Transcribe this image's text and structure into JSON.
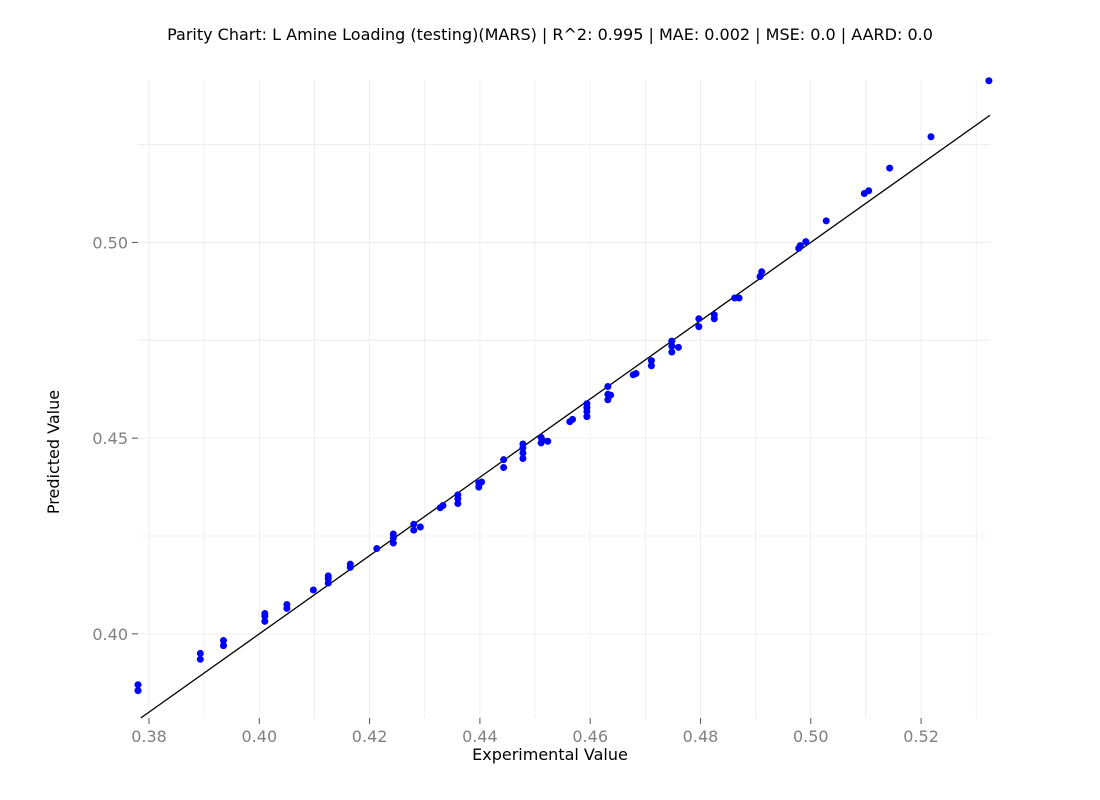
{
  "chart_data": {
    "type": "scatter",
    "title": "Parity Chart: L Amine Loading (testing)(MARS) | R^2: 0.995 | MAE: 0.002 | MSE: 0.0 | AARD: 0.0",
    "xlabel": "Experimental Value",
    "ylabel": "Predicted Value",
    "xlim": [
      0.378,
      0.5325
    ],
    "ylim": [
      0.3785,
      0.5415
    ],
    "xticks": [
      0.38,
      0.4,
      0.42,
      0.44,
      0.46,
      0.48,
      0.5,
      0.52
    ],
    "xtick_labels": [
      "0.38",
      "0.40",
      "0.42",
      "0.44",
      "0.46",
      "0.48",
      "0.50",
      "0.52"
    ],
    "yticks": [
      0.4,
      0.45,
      0.5
    ],
    "ytick_labels": [
      "0.40",
      "0.45",
      "0.50"
    ],
    "grid": true,
    "marker_color": "#0000ff",
    "reference_line": "y = x",
    "reference_line_color": "#000000",
    "series": [
      {
        "x": [
          0.378,
          0.378,
          0.3893,
          0.3893,
          0.3935,
          0.3935,
          0.401,
          0.401,
          0.401,
          0.405,
          0.405,
          0.4098,
          0.4125,
          0.4125,
          0.4125,
          0.4165,
          0.4165,
          0.4213,
          0.4243,
          0.4243,
          0.4243,
          0.428,
          0.428,
          0.4292,
          0.4328,
          0.4333,
          0.436,
          0.436,
          0.436,
          0.4398,
          0.4398,
          0.4403,
          0.4443,
          0.4443,
          0.4478,
          0.4478,
          0.4478,
          0.4478,
          0.4511,
          0.4511,
          0.4513,
          0.4523,
          0.4563,
          0.4568,
          0.4594,
          0.4594,
          0.4594,
          0.4594,
          0.4632,
          0.4632,
          0.4632,
          0.4637,
          0.4678,
          0.4683,
          0.4711,
          0.4711,
          0.4748,
          0.4748,
          0.4748,
          0.476,
          0.4797,
          0.4797,
          0.4825,
          0.4825,
          0.4862,
          0.487,
          0.4908,
          0.4911,
          0.4978,
          0.4981,
          0.4991,
          0.5028,
          0.5097,
          0.5105,
          0.5143,
          0.5218,
          0.5323
        ]
      },
      {
        "y": [
          0.3855,
          0.387,
          0.3935,
          0.395,
          0.397,
          0.3983,
          0.4032,
          0.4045,
          0.4052,
          0.4065,
          0.4075,
          0.4112,
          0.413,
          0.4141,
          0.4148,
          0.417,
          0.4178,
          0.4218,
          0.4232,
          0.4245,
          0.4255,
          0.4265,
          0.428,
          0.4273,
          0.4322,
          0.4328,
          0.4333,
          0.4345,
          0.4355,
          0.4375,
          0.4385,
          0.4388,
          0.4425,
          0.4445,
          0.4448,
          0.4462,
          0.4475,
          0.4485,
          0.4488,
          0.4502,
          0.4495,
          0.4492,
          0.4542,
          0.4548,
          0.4555,
          0.4568,
          0.4578,
          0.4588,
          0.4598,
          0.4612,
          0.4632,
          0.461,
          0.4662,
          0.4665,
          0.4685,
          0.4698,
          0.472,
          0.4735,
          0.4748,
          0.4732,
          0.4785,
          0.4805,
          0.4805,
          0.4815,
          0.4858,
          0.4858,
          0.4913,
          0.4925,
          0.4985,
          0.4992,
          0.5002,
          0.5055,
          0.5125,
          0.5132,
          0.519,
          0.527,
          0.5413
        ]
      }
    ]
  }
}
